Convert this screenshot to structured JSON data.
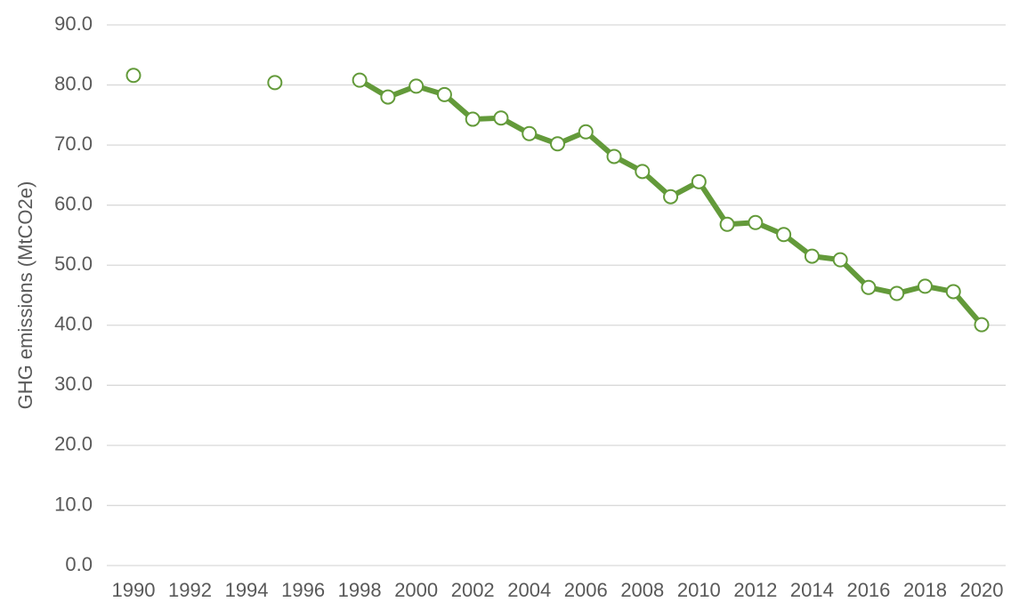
{
  "chart_data": {
    "type": "line",
    "y_label": "GHG emissions (MtCO2e)",
    "x": [
      1990,
      1991,
      1992,
      1993,
      1994,
      1995,
      1996,
      1997,
      1998,
      1999,
      2000,
      2001,
      2002,
      2003,
      2004,
      2005,
      2006,
      2007,
      2008,
      2009,
      2010,
      2011,
      2012,
      2013,
      2014,
      2015,
      2016,
      2017,
      2018,
      2019,
      2020
    ],
    "series": [
      {
        "color": "#639a3a",
        "values": [
          81.6,
          null,
          null,
          null,
          null,
          80.4,
          null,
          null,
          80.8,
          78.0,
          79.8,
          78.4,
          74.3,
          74.5,
          71.9,
          70.2,
          72.2,
          68.1,
          65.6,
          61.4,
          63.9,
          56.8,
          57.1,
          55.1,
          51.5,
          50.9,
          46.3,
          45.3,
          46.5,
          45.6,
          40.1
        ]
      }
    ],
    "xlim": [
      1990,
      2020
    ],
    "xticks": [
      1990,
      1992,
      1994,
      1996,
      1998,
      2000,
      2002,
      2004,
      2006,
      2008,
      2010,
      2012,
      2014,
      2016,
      2018,
      2020
    ],
    "ylim": [
      0,
      90
    ],
    "yticks": [
      {
        "value": 0,
        "label": "0.0"
      },
      {
        "value": 10,
        "label": "10.0"
      },
      {
        "value": 20,
        "label": "20.0"
      },
      {
        "value": 30,
        "label": "30.0"
      },
      {
        "value": 40,
        "label": "40.0"
      },
      {
        "value": 50,
        "label": "50.0"
      },
      {
        "value": 60,
        "label": "60.0"
      },
      {
        "value": 70,
        "label": "70.0"
      },
      {
        "value": 80,
        "label": "80.0"
      },
      {
        "value": 90,
        "label": "90.0"
      }
    ],
    "grid": true
  }
}
